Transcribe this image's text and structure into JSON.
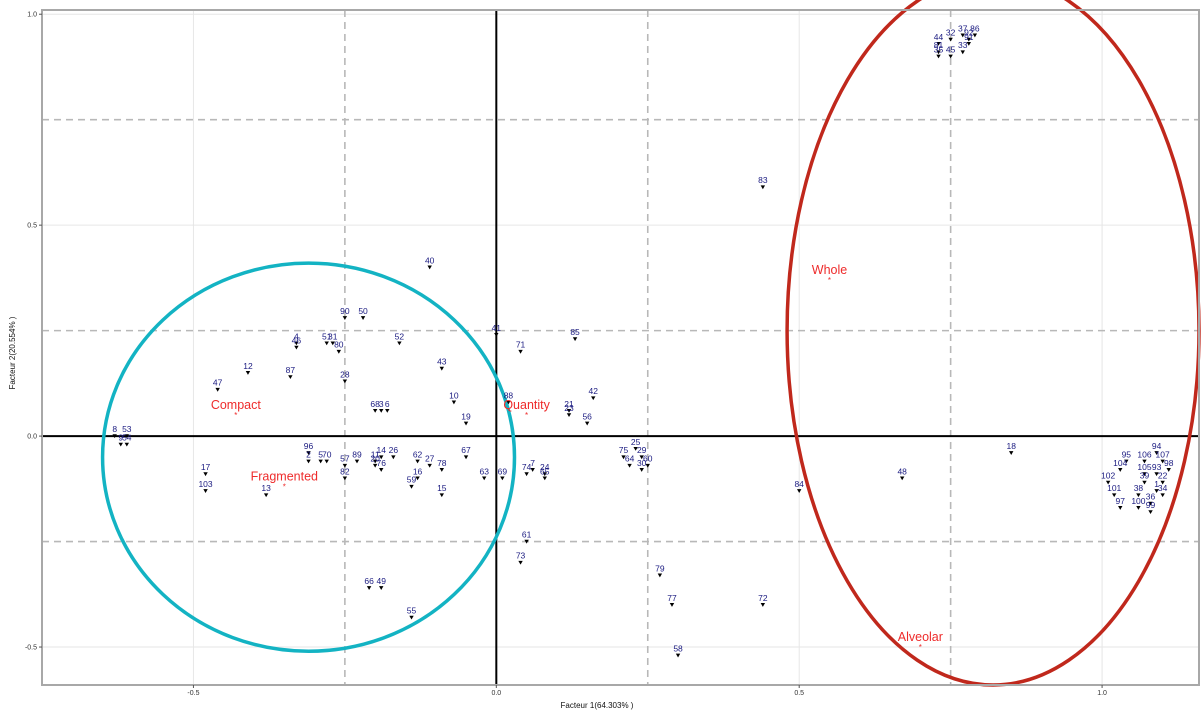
{
  "chart_data": {
    "type": "scatter",
    "xlabel": "Facteur 1(64.303% )",
    "ylabel": "Facteur 2(20.554% )",
    "xlim": [
      -0.75,
      1.16
    ],
    "ylim": [
      -0.59,
      1.01
    ],
    "xticks": [
      "-0.5",
      "0.0",
      "0.5",
      "1.0"
    ],
    "xtick_values": [
      -0.5,
      0.0,
      0.5,
      1.0
    ],
    "yticks": [
      "-0.5",
      "0.0",
      "0.5",
      "1.0"
    ],
    "ytick_values": [
      -0.5,
      0.0,
      0.5,
      1.0
    ],
    "grid": true,
    "dashed_lines_x": [
      -0.25,
      0.25,
      0.75
    ],
    "dashed_lines_y": [
      -0.25,
      0.25,
      0.75
    ],
    "colors": {
      "point": "#000000",
      "point_label": "#1a1a80",
      "variable": "#ee2b2b",
      "circle_left": "#13b3c3",
      "circle_right": "#c0281c",
      "dashed": "#b8b8b8",
      "grid": "#e6e6e6",
      "frame": "#a8a8a8"
    },
    "points": [
      {
        "label": "1",
        "x": 1.09,
        "y": -0.13
      },
      {
        "label": "2",
        "x": -0.31,
        "y": -0.06
      },
      {
        "label": "3",
        "x": -0.19,
        "y": 0.06
      },
      {
        "label": "4",
        "x": -0.33,
        "y": 0.22
      },
      {
        "label": "5",
        "x": -0.29,
        "y": -0.06
      },
      {
        "label": "6",
        "x": -0.18,
        "y": 0.06
      },
      {
        "label": "7",
        "x": 0.06,
        "y": -0.08
      },
      {
        "label": "8",
        "x": -0.63,
        "y": 0.0
      },
      {
        "label": "9",
        "x": -0.62,
        "y": -0.02
      },
      {
        "label": "10",
        "x": -0.07,
        "y": 0.08
      },
      {
        "label": "11",
        "x": -0.2,
        "y": -0.06
      },
      {
        "label": "12",
        "x": -0.41,
        "y": 0.15
      },
      {
        "label": "13",
        "x": -0.38,
        "y": -0.14
      },
      {
        "label": "14",
        "x": -0.19,
        "y": -0.05
      },
      {
        "label": "15",
        "x": -0.09,
        "y": -0.14
      },
      {
        "label": "16",
        "x": -0.13,
        "y": -0.1
      },
      {
        "label": "17",
        "x": -0.48,
        "y": -0.09
      },
      {
        "label": "18",
        "x": 0.85,
        "y": -0.04
      },
      {
        "label": "19",
        "x": -0.05,
        "y": 0.03
      },
      {
        "label": "20",
        "x": -0.2,
        "y": -0.07
      },
      {
        "label": "21",
        "x": 0.12,
        "y": 0.06
      },
      {
        "label": "22",
        "x": 1.1,
        "y": -0.11
      },
      {
        "label": "23",
        "x": 0.12,
        "y": 0.05
      },
      {
        "label": "24",
        "x": 0.08,
        "y": -0.09
      },
      {
        "label": "25",
        "x": 0.23,
        "y": -0.03
      },
      {
        "label": "26",
        "x": -0.17,
        "y": -0.05
      },
      {
        "label": "27",
        "x": -0.11,
        "y": -0.07
      },
      {
        "label": "28",
        "x": -0.25,
        "y": 0.13
      },
      {
        "label": "29",
        "x": 0.24,
        "y": -0.05
      },
      {
        "label": "30",
        "x": 0.24,
        "y": -0.08
      },
      {
        "label": "31",
        "x": -0.27,
        "y": 0.22
      },
      {
        "label": "32",
        "x": 0.75,
        "y": 0.94
      },
      {
        "label": "33",
        "x": 0.77,
        "y": 0.91
      },
      {
        "label": "34",
        "x": 1.1,
        "y": -0.14
      },
      {
        "label": "35",
        "x": 0.73,
        "y": 0.9
      },
      {
        "label": "36",
        "x": 1.08,
        "y": -0.16
      },
      {
        "label": "37",
        "x": 0.77,
        "y": 0.95
      },
      {
        "label": "38",
        "x": 1.06,
        "y": -0.14
      },
      {
        "label": "39",
        "x": 1.07,
        "y": -0.11
      },
      {
        "label": "40",
        "x": -0.11,
        "y": 0.4
      },
      {
        "label": "41",
        "x": 0.0,
        "y": 0.24
      },
      {
        "label": "42",
        "x": 0.16,
        "y": 0.09
      },
      {
        "label": "43",
        "x": -0.09,
        "y": 0.16
      },
      {
        "label": "44",
        "x": 0.73,
        "y": 0.93
      },
      {
        "label": "45",
        "x": 0.75,
        "y": 0.9
      },
      {
        "label": "46",
        "x": -0.33,
        "y": 0.21
      },
      {
        "label": "47",
        "x": -0.46,
        "y": 0.11
      },
      {
        "label": "48",
        "x": 0.67,
        "y": -0.1
      },
      {
        "label": "49",
        "x": -0.19,
        "y": -0.36
      },
      {
        "label": "50",
        "x": -0.22,
        "y": 0.28
      },
      {
        "label": "51",
        "x": -0.28,
        "y": 0.22
      },
      {
        "label": "52",
        "x": -0.16,
        "y": 0.22
      },
      {
        "label": "53",
        "x": -0.61,
        "y": 0.0
      },
      {
        "label": "54",
        "x": -0.61,
        "y": -0.02
      },
      {
        "label": "55",
        "x": -0.14,
        "y": -0.43
      },
      {
        "label": "56",
        "x": 0.15,
        "y": 0.03
      },
      {
        "label": "57",
        "x": -0.25,
        "y": -0.07
      },
      {
        "label": "58",
        "x": 0.3,
        "y": -0.52
      },
      {
        "label": "59",
        "x": -0.14,
        "y": -0.12
      },
      {
        "label": "60",
        "x": 0.25,
        "y": -0.07
      },
      {
        "label": "61",
        "x": 0.05,
        "y": -0.25
      },
      {
        "label": "62",
        "x": -0.13,
        "y": -0.06
      },
      {
        "label": "63",
        "x": -0.02,
        "y": -0.1
      },
      {
        "label": "64",
        "x": 0.22,
        "y": -0.07
      },
      {
        "label": "65",
        "x": 0.08,
        "y": -0.1
      },
      {
        "label": "66",
        "x": -0.21,
        "y": -0.36
      },
      {
        "label": "67",
        "x": -0.05,
        "y": -0.05
      },
      {
        "label": "68",
        "x": -0.2,
        "y": 0.06
      },
      {
        "label": "69",
        "x": 0.01,
        "y": -0.1
      },
      {
        "label": "70",
        "x": -0.28,
        "y": -0.06
      },
      {
        "label": "71",
        "x": 0.04,
        "y": 0.2
      },
      {
        "label": "72",
        "x": 0.44,
        "y": -0.4
      },
      {
        "label": "73",
        "x": 0.04,
        "y": -0.3
      },
      {
        "label": "74",
        "x": 0.05,
        "y": -0.09
      },
      {
        "label": "75",
        "x": 0.21,
        "y": -0.05
      },
      {
        "label": "76",
        "x": -0.19,
        "y": -0.08
      },
      {
        "label": "77",
        "x": 0.29,
        "y": -0.4
      },
      {
        "label": "78",
        "x": -0.09,
        "y": -0.08
      },
      {
        "label": "79",
        "x": 0.27,
        "y": -0.33
      },
      {
        "label": "80",
        "x": -0.26,
        "y": 0.2
      },
      {
        "label": "81",
        "x": 0.73,
        "y": 0.91
      },
      {
        "label": "82",
        "x": -0.25,
        "y": -0.1
      },
      {
        "label": "83",
        "x": 0.44,
        "y": 0.59
      },
      {
        "label": "84",
        "x": 0.5,
        "y": -0.13
      },
      {
        "label": "85",
        "x": 0.13,
        "y": 0.23
      },
      {
        "label": "86",
        "x": 0.79,
        "y": 0.95
      },
      {
        "label": "87",
        "x": -0.34,
        "y": 0.14
      },
      {
        "label": "88",
        "x": 0.02,
        "y": 0.08
      },
      {
        "label": "89",
        "x": -0.23,
        "y": -0.06
      },
      {
        "label": "90",
        "x": -0.25,
        "y": 0.28
      },
      {
        "label": "91",
        "x": 0.78,
        "y": 0.93
      },
      {
        "label": "92",
        "x": 0.78,
        "y": 0.94
      },
      {
        "label": "93",
        "x": 1.09,
        "y": -0.09
      },
      {
        "label": "94",
        "x": 1.09,
        "y": -0.04
      },
      {
        "label": "95",
        "x": 1.04,
        "y": -0.06
      },
      {
        "label": "96",
        "x": -0.31,
        "y": -0.04
      },
      {
        "label": "97",
        "x": 1.03,
        "y": -0.17
      },
      {
        "label": "98",
        "x": 1.11,
        "y": -0.08
      },
      {
        "label": "99",
        "x": 1.08,
        "y": -0.18
      },
      {
        "label": "100",
        "x": 1.06,
        "y": -0.17
      },
      {
        "label": "101",
        "x": 1.02,
        "y": -0.14
      },
      {
        "label": "102",
        "x": 1.01,
        "y": -0.11
      },
      {
        "label": "103",
        "x": -0.48,
        "y": -0.13
      },
      {
        "label": "104",
        "x": 1.03,
        "y": -0.08
      },
      {
        "label": "105",
        "x": 1.07,
        "y": -0.09
      },
      {
        "label": "106",
        "x": 1.07,
        "y": -0.06
      },
      {
        "label": "107",
        "x": 1.1,
        "y": -0.06
      }
    ],
    "variables": [
      {
        "label": "Compact",
        "x": -0.43,
        "y": 0.05
      },
      {
        "label": "Fragmented",
        "x": -0.35,
        "y": -0.12
      },
      {
        "label": "Quantity",
        "x": 0.05,
        "y": 0.05
      },
      {
        "label": "Whole",
        "x": 0.55,
        "y": 0.37
      },
      {
        "label": "Alveolar",
        "x": 0.7,
        "y": -0.5
      }
    ],
    "annotations": [
      {
        "shape": "ellipse",
        "color": "circle_left",
        "center": [
          -0.31,
          -0.05
        ],
        "radius_x": 0.34,
        "radius_y": 0.46
      },
      {
        "shape": "ellipse",
        "color": "circle_right",
        "center": [
          0.82,
          0.25
        ],
        "radius_x": 0.34,
        "radius_y": 0.84
      }
    ]
  }
}
